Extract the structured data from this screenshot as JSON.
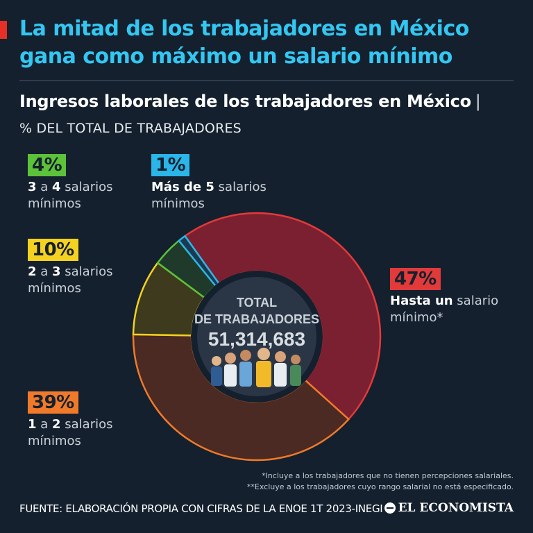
{
  "headline": {
    "line1": "La mitad de los trabajadores en México",
    "line2": "gana como máximo un salario mínimo"
  },
  "subtitle": "Ingresos laborales de los trabajadores en México",
  "subtitle_sep": "|",
  "unit": "% DEL TOTAL DE TRABAJADORES",
  "center": {
    "line1": "TOTAL",
    "line2": "DE TRABAJADORES",
    "total": "51,314,683"
  },
  "chart_data": {
    "type": "pie",
    "unit": "% DEL TOTAL DE TRABAJADORES",
    "total_workers": 51314683,
    "slices": [
      {
        "pct": "47%",
        "value": 47,
        "strong": "Hasta un",
        "rest": " salario",
        "line2": "mínimo*",
        "color": "#7a2030",
        "stroke": "#e23a3a",
        "badge": "#e23a3a"
      },
      {
        "pct": "39%",
        "value": 39,
        "strong1": "1",
        "mid": " a ",
        "strong2": "2",
        "rest": " salarios",
        "line2": "mínimos",
        "color": "#4a2a22",
        "stroke": "#f07a2a",
        "badge": "#f07a2a"
      },
      {
        "pct": "10%",
        "value": 10,
        "strong1": "2",
        "mid": " a ",
        "strong2": "3",
        "rest": " salarios",
        "line2": "mínimos",
        "color": "#3d3a1e",
        "stroke": "#f4d21f",
        "badge": "#f4d21f"
      },
      {
        "pct": "4%",
        "value": 4,
        "strong1": "3",
        "mid": " a ",
        "strong2": "4",
        "rest": " salarios",
        "line2": "mínimos",
        "color": "#1f3a2a",
        "stroke": "#5cc23a",
        "badge": "#5cc23a"
      },
      {
        "pct": "1%",
        "value": 1,
        "strong": "Más de 5",
        "rest": " salarios",
        "line2": "mínimos",
        "color": "#1b3a52",
        "stroke": "#2ab6e8",
        "badge": "#2ab6e8"
      }
    ]
  },
  "notes": {
    "note1": "*Incluye a los trabajadores que no tienen percepciones salariales.",
    "note2": "**Excluye a los trabajadores cuyo rango salarial no está especificado."
  },
  "footer": "FUENTE: ELABORACIÓN PROPIA CON CIFRAS DE LA ENOE 1T 2023-INEGI",
  "brand": "EL ECONOMISTA"
}
